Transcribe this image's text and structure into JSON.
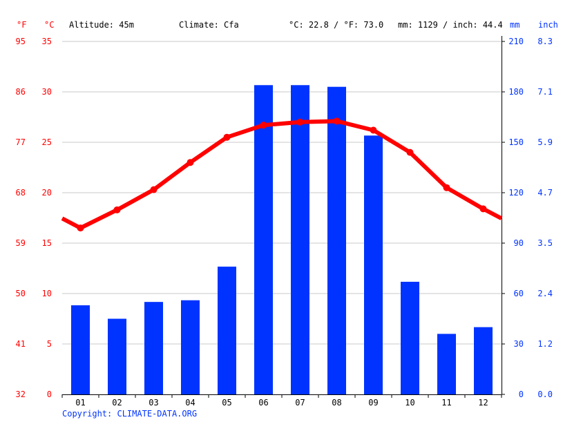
{
  "header": {
    "unit_f": "°F",
    "unit_c": "°C",
    "altitude": "Altitude: 45m",
    "climate": "Climate: Cfa",
    "temps": "°C: 22.8 / °F: 73.0",
    "precip": "mm: 1129 / inch: 44.4",
    "unit_mm": "mm",
    "unit_inch": "inch"
  },
  "copyright": "Copyright: CLIMATE-DATA.ORG",
  "colors": {
    "temp_line": "#ff0000",
    "precip_bars": "#0033ff",
    "grid": "#c8c8c8",
    "axis_right": "#0033ff",
    "axis_left": "#ff0000"
  },
  "chart_data": {
    "type": "bar",
    "categories": [
      "01",
      "02",
      "03",
      "04",
      "05",
      "06",
      "07",
      "08",
      "09",
      "10",
      "11",
      "12"
    ],
    "series": [
      {
        "type": "bar",
        "axis": "right",
        "unit": "mm",
        "values": [
          53,
          45,
          55,
          56,
          76,
          184,
          184,
          183,
          154,
          67,
          36,
          40
        ]
      },
      {
        "type": "line",
        "axis": "left",
        "unit": "°C",
        "values": [
          16.5,
          18.3,
          20.3,
          23.0,
          25.5,
          26.7,
          27.0,
          27.1,
          26.2,
          24.0,
          20.5,
          18.4
        ]
      }
    ],
    "y_left_c_ticks": [
      "0",
      "5",
      "10",
      "15",
      "20",
      "25",
      "30",
      "35"
    ],
    "y_left_f_ticks": [
      "32",
      "41",
      "50",
      "59",
      "68",
      "77",
      "86",
      "95"
    ],
    "y_right_mm_ticks": [
      "0",
      "30",
      "60",
      "90",
      "120",
      "150",
      "180",
      "210"
    ],
    "y_right_inch_ticks": [
      "0.0",
      "1.2",
      "2.4",
      "3.5",
      "4.7",
      "5.9",
      "7.1",
      "8.3"
    ],
    "ylim_c": [
      0,
      35
    ],
    "ylim_mm": [
      0,
      210
    ],
    "grid": true
  }
}
